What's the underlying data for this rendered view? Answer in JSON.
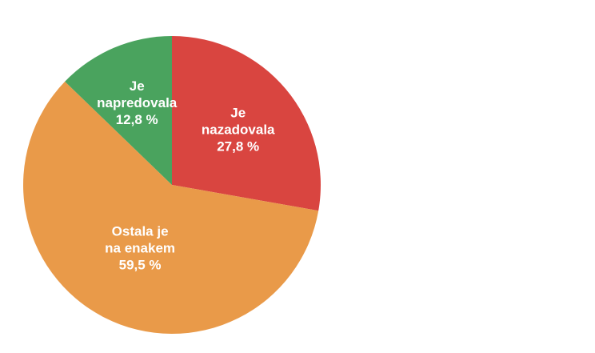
{
  "chart_data": {
    "type": "pie",
    "start_angle_deg": 0,
    "direction": "clockwise",
    "slices": [
      {
        "label_lines": [
          "Je",
          "nazadovala",
          "27,8 %"
        ],
        "value": 27.8,
        "color": "#d94540"
      },
      {
        "label_lines": [
          "Ostala je",
          "na enakem",
          "59,5 %"
        ],
        "value": 59.5,
        "color": "#e99a49"
      },
      {
        "label_lines": [
          "Je",
          "napredovala",
          "12,8 %"
        ],
        "value": 12.8,
        "color": "#4aa35e"
      }
    ]
  }
}
